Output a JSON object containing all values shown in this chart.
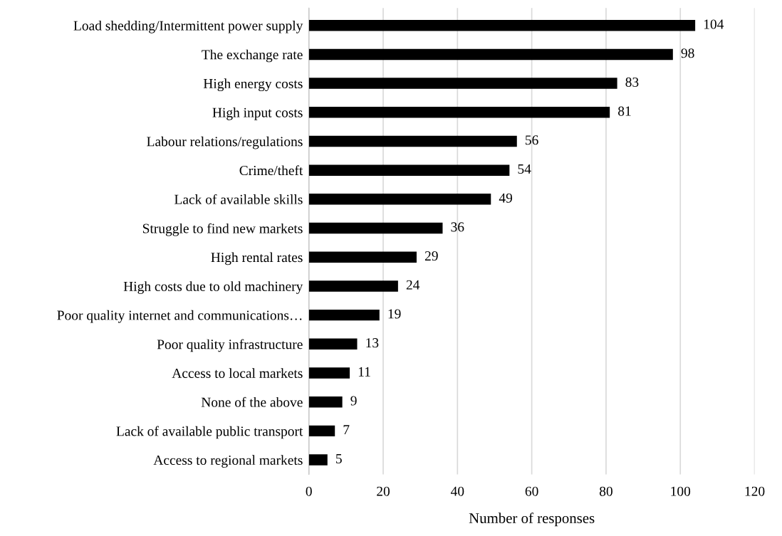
{
  "chart_data": {
    "type": "bar",
    "orientation": "horizontal",
    "xlabel": "Number of responses",
    "categories": [
      "Load shedding/Intermittent power supply",
      "The exchange rate",
      "High energy costs",
      "High input costs",
      "Labour relations/regulations",
      "Crime/theft",
      "Lack of available skills",
      "Struggle to find new markets",
      "High rental rates",
      "High costs due to old machinery",
      "Poor quality internet and communications…",
      "Poor quality infrastructure",
      "Access to local markets",
      "None of the above",
      "Lack of available public transport",
      "Access to regional markets"
    ],
    "values": [
      104,
      98,
      83,
      81,
      56,
      54,
      49,
      36,
      29,
      24,
      19,
      13,
      11,
      9,
      7,
      5
    ],
    "color": "#000000",
    "xlim": [
      0,
      120
    ],
    "xticks": [
      0,
      20,
      40,
      60,
      80,
      100,
      120
    ],
    "grid": "x",
    "data_labels": true,
    "legend": false
  }
}
